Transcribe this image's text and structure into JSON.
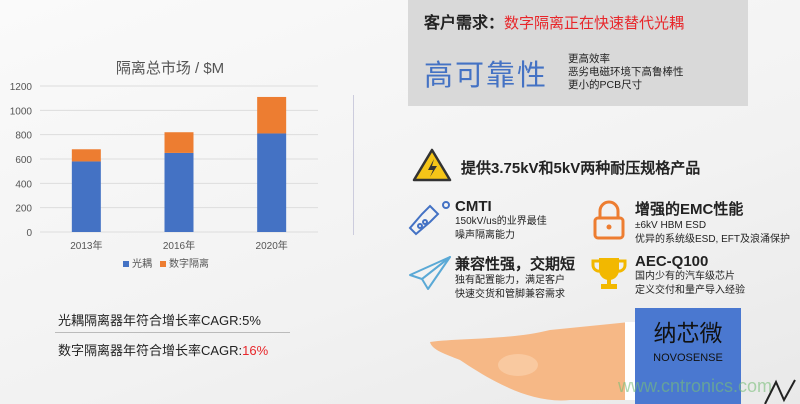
{
  "chart_data": {
    "type": "bar",
    "stacked": true,
    "title": "隔离总市场 / $M",
    "categories": [
      "2013年",
      "2016年",
      "2020年"
    ],
    "series": [
      {
        "name": "光耦",
        "color": "#4472c4",
        "values": [
          580,
          650,
          810
        ]
      },
      {
        "name": "数字隔离",
        "color": "#ed7d31",
        "values": [
          100,
          170,
          300
        ]
      }
    ],
    "ylim": [
      0,
      1200
    ],
    "yticks": [
      0,
      200,
      400,
      600,
      800,
      1000,
      1200
    ],
    "grid": true,
    "legend": "bottom"
  },
  "cagr": {
    "optical_label": "光耦隔离器年符合增长率CAGR:",
    "optical_value": "5%",
    "digital_label": "数字隔离器年符合增长率CAGR:",
    "digital_value": "16%"
  },
  "needs": {
    "label": "客户需求：",
    "value": "数字隔离正在快速替代光耦",
    "big": "高可靠性",
    "items": [
      "更高效率",
      "恶劣电磁环境下高鲁棒性",
      "更小的PCB尺寸"
    ]
  },
  "voltage": {
    "icon": "high-voltage-warning-icon",
    "text": "提供3.75kV和5kV两种耐压规格产品"
  },
  "features": [
    {
      "icon": "flask-icon",
      "title": "CMTI",
      "lines": [
        "150kV/us的业界最佳",
        "噪声隔离能力"
      ]
    },
    {
      "icon": "lock-icon",
      "title": "增强的EMC性能",
      "lines": [
        "±6kV HBM ESD",
        "优异的系统级ESD, EFT及浪涌保护"
      ]
    },
    {
      "icon": "paper-plane-icon",
      "title": "兼容性强，交期短",
      "lines": [
        "独有配置能力，满足客户",
        "快速交货和管脚兼容需求"
      ]
    },
    {
      "icon": "trophy-icon",
      "title": "AEC-Q100",
      "lines": [
        "国内少有的汽车级芯片",
        "定义交付和量产导入经验"
      ]
    }
  ],
  "logo": {
    "cn": "纳芯微",
    "en": "NOVOSENSE"
  },
  "watermark": "www.cntronics.com"
}
